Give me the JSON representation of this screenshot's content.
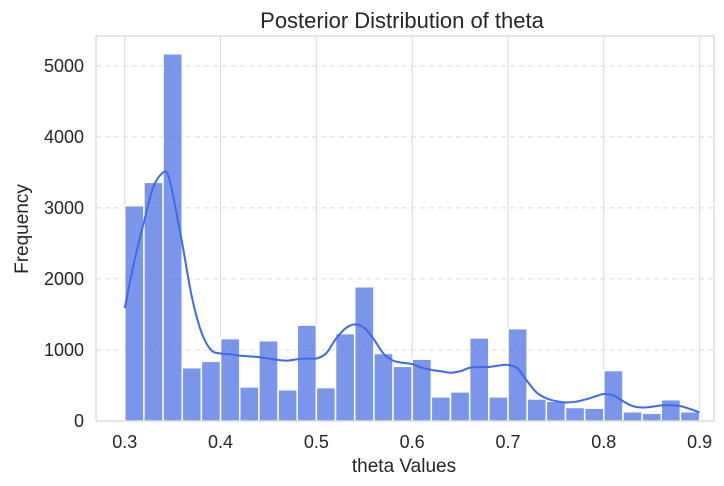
{
  "chart_data": {
    "type": "bar",
    "title": "Posterior Distribution of theta",
    "xlabel": "theta Values",
    "ylabel": "Frequency",
    "xlim": [
      0.27,
      0.915
    ],
    "ylim": [
      0,
      5420
    ],
    "x_ticks": [
      "0.3",
      "0.4",
      "0.5",
      "0.6",
      "0.7",
      "0.8",
      "0.9"
    ],
    "y_ticks": [
      "0",
      "1000",
      "2000",
      "3000",
      "4000",
      "5000"
    ],
    "bin_edges": [
      0.3,
      0.32,
      0.34,
      0.36,
      0.38,
      0.4,
      0.42,
      0.44,
      0.46,
      0.48,
      0.5,
      0.52,
      0.54,
      0.56,
      0.58,
      0.6,
      0.62,
      0.64,
      0.66,
      0.68,
      0.7,
      0.72,
      0.74,
      0.76,
      0.78,
      0.8,
      0.82,
      0.84,
      0.86,
      0.88,
      0.9
    ],
    "values": [
      3030,
      3360,
      5170,
      750,
      840,
      1160,
      480,
      1130,
      440,
      1350,
      470,
      1230,
      1890,
      950,
      770,
      870,
      340,
      410,
      1170,
      340,
      1300,
      310,
      280,
      190,
      180,
      710,
      130,
      110,
      300,
      130
    ],
    "kde": {
      "x": [
        0.3,
        0.31,
        0.32,
        0.33,
        0.34,
        0.345,
        0.35,
        0.36,
        0.37,
        0.38,
        0.39,
        0.4,
        0.41,
        0.42,
        0.43,
        0.44,
        0.45,
        0.46,
        0.47,
        0.48,
        0.49,
        0.5,
        0.51,
        0.52,
        0.53,
        0.54,
        0.55,
        0.56,
        0.57,
        0.58,
        0.59,
        0.6,
        0.61,
        0.62,
        0.63,
        0.64,
        0.65,
        0.66,
        0.67,
        0.68,
        0.69,
        0.7,
        0.71,
        0.72,
        0.73,
        0.74,
        0.75,
        0.76,
        0.77,
        0.78,
        0.79,
        0.8,
        0.81,
        0.82,
        0.83,
        0.84,
        0.85,
        0.86,
        0.87,
        0.88,
        0.89,
        0.9
      ],
      "y": [
        1590,
        2250,
        2800,
        3300,
        3500,
        3470,
        3200,
        2500,
        1750,
        1250,
        1000,
        950,
        940,
        920,
        910,
        900,
        880,
        860,
        850,
        870,
        880,
        880,
        950,
        1150,
        1300,
        1360,
        1310,
        1150,
        950,
        850,
        820,
        800,
        750,
        720,
        700,
        680,
        700,
        750,
        760,
        760,
        780,
        790,
        740,
        560,
        400,
        320,
        280,
        260,
        270,
        300,
        340,
        380,
        360,
        280,
        210,
        190,
        200,
        220,
        220,
        210,
        170,
        120
      ]
    },
    "bar_color": "#4169E1",
    "bar_opacity": 0.7,
    "kde_color": "#4169E1",
    "grid": true
  }
}
